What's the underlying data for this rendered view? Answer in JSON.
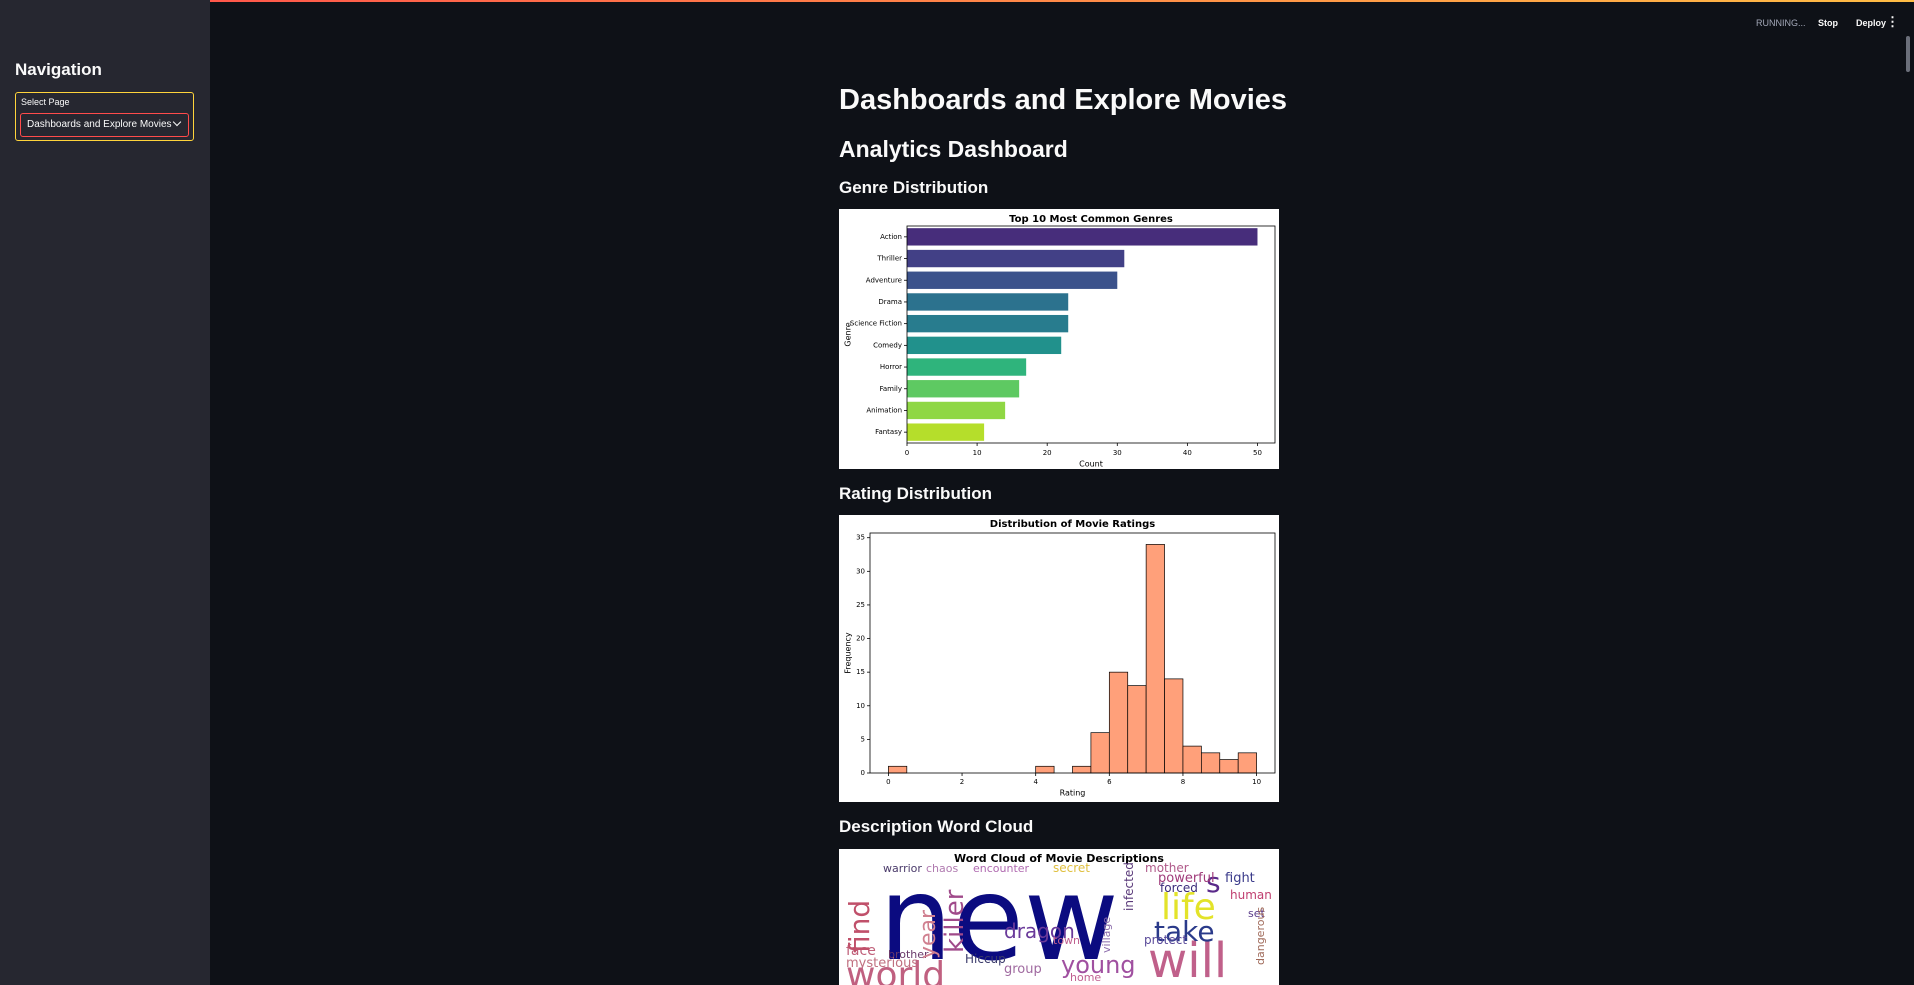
{
  "sidebar": {
    "title": "Navigation",
    "select_label": "Select Page",
    "select_value": "Dashboards and Explore Movies"
  },
  "toolbar": {
    "status": "RUNNING...",
    "stop": "Stop",
    "deploy": "Deploy"
  },
  "main": {
    "title": "Dashboards and Explore Movies",
    "subtitle": "Analytics Dashboard",
    "sections": [
      "Genre Distribution",
      "Rating Distribution",
      "Description Word Cloud"
    ]
  },
  "chart_data": [
    {
      "type": "bar",
      "orientation": "horizontal",
      "title": "Top 10 Most Common Genres",
      "xlabel": "Count",
      "ylabel": "Genre",
      "categories": [
        "Action",
        "Thriller",
        "Adventure",
        "Drama",
        "Science Fiction",
        "Comedy",
        "Horror",
        "Family",
        "Animation",
        "Fantasy"
      ],
      "values": [
        50,
        31,
        30,
        23,
        23,
        22,
        17,
        16,
        14,
        11
      ],
      "colors": [
        "#472d7b",
        "#424086",
        "#3b528b",
        "#2c728e",
        "#287c8e",
        "#21918c",
        "#2fb47c",
        "#5ec962",
        "#8fd744",
        "#b5de2b"
      ],
      "xlim": [
        0,
        52.5
      ],
      "xticks": [
        0,
        10,
        20,
        30,
        40,
        50
      ],
      "grid": false
    },
    {
      "type": "histogram",
      "title": "Distribution of Movie Ratings",
      "xlabel": "Rating",
      "ylabel": "Frequency",
      "bins": [
        0,
        0.5,
        1,
        1.5,
        2,
        2.5,
        3,
        3.5,
        4,
        4.5,
        5,
        5.5,
        6,
        6.5,
        7,
        7.5,
        8,
        8.5,
        9,
        9.5,
        10
      ],
      "values": [
        1,
        0,
        0,
        0,
        0,
        0,
        0,
        0,
        1,
        0,
        1,
        6,
        15,
        13,
        34,
        14,
        4,
        3,
        2,
        3
      ],
      "color": "#ffa07a",
      "edgecolor": "#000000",
      "xlim": [
        -0.5,
        10.5
      ],
      "xticks": [
        0,
        2,
        4,
        6,
        8,
        10
      ],
      "ylim": [
        0,
        35.7
      ],
      "yticks": [
        0,
        5,
        10,
        15,
        20,
        25,
        30,
        35
      ],
      "grid": false
    }
  ],
  "wordcloud": {
    "title": "Word Cloud of Movie Descriptions",
    "words": [
      {
        "text": "new",
        "color": "#0b0b80"
      },
      {
        "text": "will",
        "color": "#c0608a"
      },
      {
        "text": "life",
        "color": "#e3e32a"
      },
      {
        "text": "take",
        "color": "#2a3a8a"
      },
      {
        "text": "young",
        "color": "#a050a0"
      },
      {
        "text": "dragon",
        "color": "#6a3a9a"
      },
      {
        "text": "s",
        "color": "#5a2a8a"
      },
      {
        "text": "fight",
        "color": "#3a3a8a"
      },
      {
        "text": "human",
        "color": "#c04070"
      },
      {
        "text": "forced",
        "color": "#3a2a7a"
      },
      {
        "text": "powerful",
        "color": "#a03a7a"
      },
      {
        "text": "mother",
        "color": "#b05a8a"
      },
      {
        "text": "secret",
        "color": "#e0c040"
      },
      {
        "text": "encounter",
        "color": "#b06ab0"
      },
      {
        "text": "warrior",
        "color": "#4a3a6a"
      },
      {
        "text": "chaos",
        "color": "#b07ab0"
      },
      {
        "text": "set",
        "color": "#5a3a8a"
      },
      {
        "text": "protect",
        "color": "#5a4a9a"
      },
      {
        "text": "town",
        "color": "#c06090"
      },
      {
        "text": "face",
        "color": "#c0607a"
      },
      {
        "text": "mysterious",
        "color": "#c07080"
      },
      {
        "text": "brother",
        "color": "#6a3a6a"
      },
      {
        "text": "group",
        "color": "#a06aa0"
      },
      {
        "text": "home",
        "color": "#c06090"
      },
      {
        "text": "Hiccup",
        "color": "#3a3a6a"
      },
      {
        "text": "world",
        "color": "#c06080"
      },
      {
        "text": "find",
        "color": "#c0506a"
      },
      {
        "text": "killer",
        "color": "#a04a8a"
      },
      {
        "text": "year",
        "color": "#d08090"
      },
      {
        "text": "infected",
        "color": "#5a3a7a"
      },
      {
        "text": "village",
        "color": "#8a6aaa"
      },
      {
        "text": "dangerous",
        "color": "#a06a5a"
      }
    ]
  }
}
